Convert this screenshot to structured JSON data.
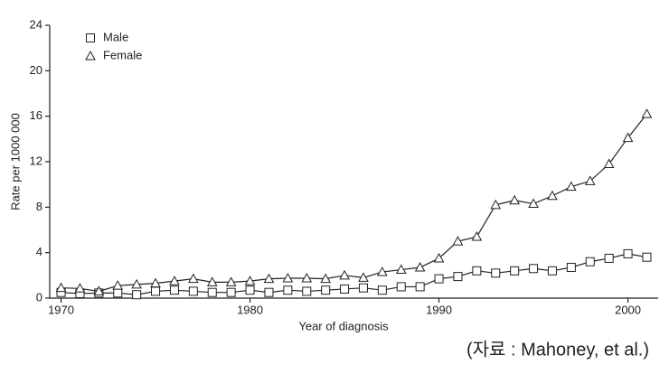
{
  "chart_data": {
    "type": "line",
    "x_label": "Year of diagnosis",
    "y_label": "Rate per 1000 000",
    "source": "(자료 : Mahoney, et al.)",
    "x": [
      1970,
      1971,
      1972,
      1973,
      1974,
      1975,
      1976,
      1977,
      1978,
      1979,
      1980,
      1981,
      1982,
      1983,
      1984,
      1985,
      1986,
      1987,
      1988,
      1989,
      1990,
      1991,
      1992,
      1993,
      1994,
      1995,
      1996,
      1997,
      1998,
      1999,
      2000,
      2001
    ],
    "series": [
      {
        "name": "Male",
        "color": "#222222",
        "marker": "square",
        "values": [
          0.5,
          0.4,
          0.45,
          0.45,
          0.3,
          0.6,
          0.7,
          0.6,
          0.5,
          0.5,
          0.7,
          0.5,
          0.7,
          0.6,
          0.7,
          0.8,
          0.9,
          0.7,
          1.0,
          1.0,
          1.7,
          1.9,
          2.4,
          2.2,
          2.4,
          2.6,
          2.4,
          2.7,
          3.2,
          3.5,
          3.9,
          3.6
        ]
      },
      {
        "name": "Female",
        "color": "#222222",
        "marker": "triangle",
        "values": [
          0.9,
          0.85,
          0.6,
          1.1,
          1.2,
          1.3,
          1.5,
          1.7,
          1.4,
          1.4,
          1.5,
          1.7,
          1.75,
          1.75,
          1.7,
          2.0,
          1.8,
          2.3,
          2.5,
          2.7,
          3.5,
          5.0,
          5.4,
          8.2,
          8.6,
          8.3,
          9.0,
          9.8,
          10.3,
          11.8,
          14.1,
          16.2
        ]
      }
    ],
    "xlim": [
      1969.4,
      2001.6
    ],
    "xticks": [
      1970,
      1980,
      1990,
      2000
    ],
    "ylim": [
      0,
      24
    ],
    "yticks": [
      0,
      4,
      8,
      12,
      16,
      20,
      24
    ],
    "legend": "top-left"
  }
}
